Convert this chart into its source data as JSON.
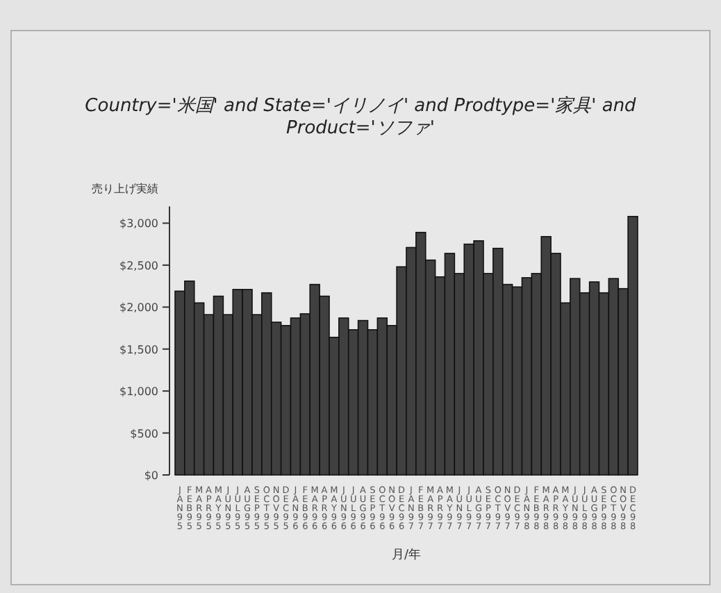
{
  "chart_data": {
    "type": "bar",
    "title": "Country='米国' and State='イリノイ' and Prodtype='家具' and Product='ソファ'",
    "xlabel": "月/年",
    "ylabel": "売り上げ実績",
    "categories": [
      "JAN95",
      "FEB95",
      "MAR95",
      "APR95",
      "MAY95",
      "JUN95",
      "JUL95",
      "AUG95",
      "SEP95",
      "OCT95",
      "NOV95",
      "DEC95",
      "JAN96",
      "FEB96",
      "MAR96",
      "APR96",
      "MAY96",
      "JUN96",
      "JUL96",
      "AUG96",
      "SEP96",
      "OCT96",
      "NOV96",
      "DEC96",
      "JAN97",
      "FEB97",
      "MAR97",
      "APR97",
      "MAY97",
      "JUN97",
      "JUL97",
      "AUG97",
      "SEP97",
      "OCT97",
      "NOV97",
      "DEC97",
      "JAN98",
      "FEB98",
      "MAR98",
      "APR98",
      "MAY98",
      "JUN98",
      "JUL98",
      "AUG98",
      "SEP98",
      "OCT98",
      "NOV98",
      "DEC98"
    ],
    "values": [
      2190,
      2310,
      2050,
      1910,
      2130,
      1910,
      2210,
      2210,
      1910,
      2170,
      1820,
      1780,
      1870,
      1920,
      2270,
      2130,
      1640,
      1870,
      1730,
      1840,
      1730,
      1870,
      1780,
      2480,
      2710,
      2890,
      2560,
      2360,
      2640,
      2400,
      2750,
      2790,
      2400,
      2700,
      2270,
      2240,
      2350,
      2400,
      2840,
      2640,
      2050,
      2340,
      2170,
      2300,
      2170,
      2340,
      2220,
      3080
    ],
    "color": "#404040",
    "ylim": [
      0,
      3200
    ],
    "yticks": [
      {
        "value": 0,
        "label": "$0"
      },
      {
        "value": 500,
        "label": "$500"
      },
      {
        "value": 1000,
        "label": "$1,000"
      },
      {
        "value": 1500,
        "label": "$1,500"
      },
      {
        "value": 2000,
        "label": "$2,000"
      },
      {
        "value": 2500,
        "label": "$2,500"
      },
      {
        "value": 3000,
        "label": "$3,000"
      }
    ],
    "grid": false
  }
}
